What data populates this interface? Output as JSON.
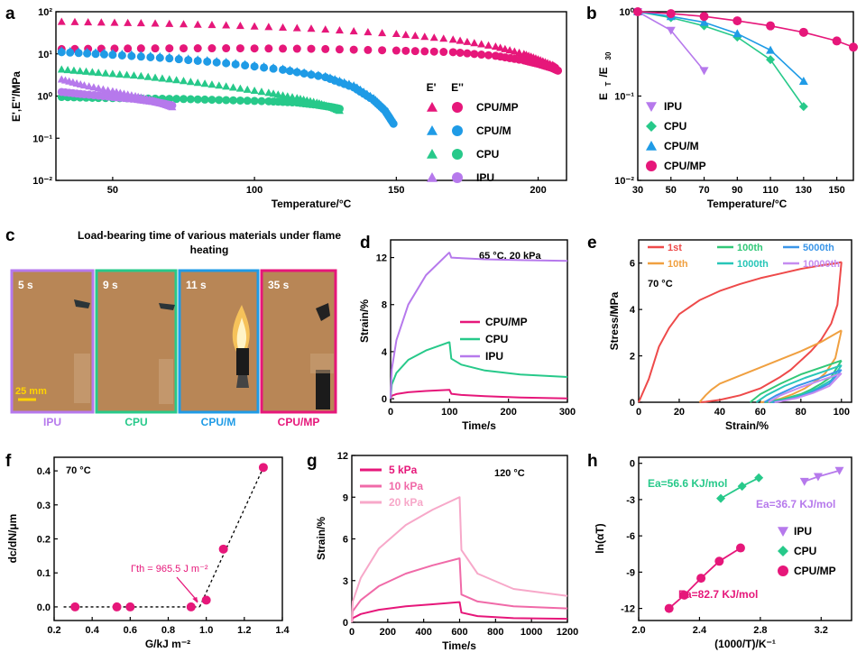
{
  "colors": {
    "cpump": "#e6177a",
    "cpum": "#1f9be6",
    "cpu": "#27c98a",
    "ipu": "#b679ec",
    "dark": "#000000",
    "cpump_light1": "#f06aa8",
    "cpump_light2": "#f7a8c9",
    "cycle1": "#ee4a4a",
    "cycle10": "#f0a040",
    "cycle100": "#32c878",
    "cycle1000": "#28c6b8",
    "cycle5000": "#3b96e8",
    "cycle10000": "#c58cf0"
  },
  "panels": {
    "a": {
      "letter": "a"
    },
    "b": {
      "letter": "b"
    },
    "c": {
      "letter": "c",
      "title_line1": "Load-bearing time of various materials under flame",
      "title_line2": "heating",
      "scale_bar": "25 mm",
      "photos": [
        {
          "time": "5 s",
          "label": "IPU"
        },
        {
          "time": "9 s",
          "label": "CPU"
        },
        {
          "time": "11 s",
          "label": "CPU/M"
        },
        {
          "time": "35 s",
          "label": "CPU/MP"
        }
      ]
    },
    "d": {
      "letter": "d"
    },
    "e": {
      "letter": "e"
    },
    "f": {
      "letter": "f"
    },
    "g": {
      "letter": "g"
    },
    "h": {
      "letter": "h"
    }
  },
  "chart_data": [
    {
      "panel": "a",
      "type": "scatter",
      "log_y": true,
      "xlabel": "Temperature/°C",
      "ylabel": "E',E''/MPa",
      "xlim": [
        30,
        210
      ],
      "ylim": [
        0.01,
        100
      ],
      "xticks": [
        "50",
        "100",
        "150",
        "200"
      ],
      "yticks": [
        "10⁻²",
        "10⁻¹",
        "10⁰",
        "10¹",
        "10²"
      ],
      "legend_header": [
        "E'",
        "E''"
      ],
      "legend": [
        "CPU/MP",
        "CPU/M",
        "CPU",
        "IPU"
      ],
      "series": [
        {
          "name": "CPU/MP",
          "modulus": "E'",
          "x": [
            32,
            60,
            90,
            120,
            150,
            170,
            185,
            195,
            200,
            205,
            207
          ],
          "y": [
            58,
            54,
            48,
            40,
            30,
            22,
            15,
            10,
            7.5,
            5.5,
            4.5
          ]
        },
        {
          "name": "CPU/MP",
          "modulus": "E''",
          "x": [
            32,
            60,
            90,
            120,
            150,
            170,
            185,
            195,
            200,
            205,
            207
          ],
          "y": [
            13,
            13.5,
            13.6,
            13.2,
            12,
            11,
            9,
            7,
            5.8,
            4.6,
            4.0
          ]
        },
        {
          "name": "CPU/M",
          "modulus": "E'",
          "x": [
            32,
            50,
            70,
            90,
            110,
            125,
            135,
            142,
            146,
            149
          ],
          "y": [
            12,
            10.5,
            8.5,
            6.5,
            4.5,
            3,
            1.8,
            0.9,
            0.5,
            0.25
          ]
        },
        {
          "name": "CPU/M",
          "modulus": "E''",
          "x": [
            32,
            50,
            70,
            90,
            110,
            125,
            135,
            142,
            146,
            149
          ],
          "y": [
            11,
            9.5,
            7.8,
            6.0,
            4.2,
            2.8,
            1.6,
            0.8,
            0.45,
            0.22
          ]
        },
        {
          "name": "CPU",
          "modulus": "E'",
          "x": [
            32,
            45,
            60,
            75,
            90,
            105,
            115,
            122,
            127,
            130
          ],
          "y": [
            4.3,
            3.6,
            3.0,
            2.3,
            1.7,
            1.2,
            0.9,
            0.7,
            0.55,
            0.45
          ]
        },
        {
          "name": "CPU",
          "modulus": "E''",
          "x": [
            32,
            45,
            60,
            75,
            90,
            105,
            115,
            122,
            127,
            130
          ],
          "y": [
            0.95,
            0.9,
            0.88,
            0.85,
            0.8,
            0.75,
            0.7,
            0.62,
            0.55,
            0.5
          ]
        },
        {
          "name": "IPU",
          "modulus": "E'",
          "x": [
            32,
            40,
            50,
            58,
            64,
            68,
            71
          ],
          "y": [
            2.5,
            1.8,
            1.3,
            1.0,
            0.8,
            0.65,
            0.55
          ]
        },
        {
          "name": "IPU",
          "modulus": "E''",
          "x": [
            32,
            40,
            50,
            58,
            64,
            68,
            71
          ],
          "y": [
            1.25,
            1.1,
            0.95,
            0.85,
            0.75,
            0.66,
            0.6
          ]
        }
      ]
    },
    {
      "panel": "b",
      "type": "line",
      "log_y": true,
      "xlabel": "Temperature/°C",
      "ylabel": "E_T/E_30",
      "xlim": [
        30,
        160
      ],
      "ylim": [
        0.01,
        1
      ],
      "xticks": [
        "30",
        "50",
        "70",
        "90",
        "110",
        "130",
        "150"
      ],
      "yticks": [
        "10⁻²",
        "10⁻¹",
        "10⁰"
      ],
      "legend": [
        "IPU",
        "CPU",
        "CPU/M",
        "CPU/MP"
      ],
      "series": [
        {
          "name": "IPU",
          "marker": "triangle-down",
          "x": [
            30,
            50,
            70
          ],
          "y": [
            1.0,
            0.6,
            0.2
          ]
        },
        {
          "name": "CPU",
          "marker": "diamond",
          "x": [
            30,
            50,
            70,
            90,
            110,
            130
          ],
          "y": [
            1.0,
            0.85,
            0.68,
            0.5,
            0.27,
            0.075
          ]
        },
        {
          "name": "CPU/M",
          "marker": "triangle-up",
          "x": [
            30,
            50,
            70,
            90,
            110,
            130
          ],
          "y": [
            1.0,
            0.88,
            0.75,
            0.55,
            0.35,
            0.15
          ]
        },
        {
          "name": "CPU/MP",
          "marker": "circle",
          "x": [
            30,
            50,
            70,
            90,
            110,
            130,
            150,
            160
          ],
          "y": [
            1.0,
            0.95,
            0.88,
            0.78,
            0.68,
            0.57,
            0.45,
            0.38
          ]
        }
      ]
    },
    {
      "panel": "d",
      "type": "line",
      "xlabel": "Time/s",
      "ylabel": "Strain/%",
      "annotation": "65 °C, 20 kPa",
      "xlim": [
        0,
        300
      ],
      "ylim": [
        -0.3,
        13.5
      ],
      "xticks": [
        "0",
        "100",
        "200",
        "300"
      ],
      "yticks": [
        "0",
        "4",
        "8",
        "12"
      ],
      "legend": [
        "CPU/MP",
        "CPU",
        "IPU"
      ],
      "series": [
        {
          "name": "CPU/MP",
          "x": [
            0,
            2,
            10,
            30,
            60,
            99,
            100,
            103,
            120,
            160,
            220,
            300
          ],
          "y": [
            0,
            0.25,
            0.4,
            0.55,
            0.66,
            0.75,
            0.75,
            0.42,
            0.32,
            0.22,
            0.1,
            0.02
          ]
        },
        {
          "name": "CPU",
          "x": [
            0,
            2,
            10,
            30,
            60,
            99,
            100,
            103,
            120,
            160,
            220,
            300
          ],
          "y": [
            0,
            1.2,
            2.2,
            3.3,
            4.1,
            4.8,
            4.8,
            3.4,
            2.9,
            2.4,
            2.05,
            1.85
          ]
        },
        {
          "name": "IPU",
          "x": [
            0,
            2,
            10,
            30,
            60,
            99,
            100,
            103,
            120,
            160,
            220,
            300
          ],
          "y": [
            0,
            2.5,
            5.0,
            8.0,
            10.5,
            12.4,
            12.4,
            12.0,
            11.95,
            11.85,
            11.78,
            11.72
          ]
        }
      ]
    },
    {
      "panel": "e",
      "type": "line",
      "xlabel": "Strain/%",
      "ylabel": "Stress/MPa",
      "annotation": "70 °C",
      "xlim": [
        0,
        105
      ],
      "ylim": [
        0,
        7
      ],
      "xticks": [
        "0",
        "20",
        "40",
        "60",
        "80",
        "100"
      ],
      "yticks": [
        "0",
        "2",
        "4",
        "6"
      ],
      "legend": [
        "1st",
        "10th",
        "100th",
        "1000th",
        "5000th",
        "10000th"
      ],
      "series": [
        {
          "name": "1st",
          "loading": {
            "x": [
              0,
              5,
              10,
              15,
              20,
              30,
              40,
              50,
              60,
              70,
              80,
              90,
              98,
              100
            ],
            "y": [
              0,
              1.0,
              2.4,
              3.2,
              3.8,
              4.4,
              4.8,
              5.1,
              5.35,
              5.55,
              5.75,
              5.9,
              6.0,
              6.05
            ]
          },
          "unloading": {
            "x": [
              100,
              98,
              95,
              90,
              85,
              80,
              75,
              70,
              60,
              50,
              40,
              33,
              30
            ],
            "y": [
              6.05,
              4.2,
              3.4,
              2.7,
              2.2,
              1.8,
              1.4,
              1.1,
              0.6,
              0.3,
              0.1,
              0.02,
              0
            ]
          }
        },
        {
          "name": "10th",
          "loading": {
            "x": [
              30,
              33,
              36,
              40,
              50,
              60,
              70,
              80,
              90,
              97,
              100
            ],
            "y": [
              0,
              0.3,
              0.55,
              0.8,
              1.15,
              1.5,
              1.85,
              2.2,
              2.6,
              2.95,
              3.1
            ]
          },
          "unloading": {
            "x": [
              100,
              97,
              92,
              88,
              82,
              76,
              70,
              65,
              60
            ],
            "y": [
              3.1,
              1.9,
              1.25,
              0.95,
              0.6,
              0.35,
              0.15,
              0.05,
              0
            ]
          }
        },
        {
          "name": "100th",
          "loading": {
            "x": [
              55,
              60,
              70,
              80,
              90,
              100
            ],
            "y": [
              0,
              0.35,
              0.8,
              1.2,
              1.5,
              1.8
            ]
          },
          "unloading": {
            "x": [
              100,
              95,
              90,
              85,
              80,
              72,
              65,
              62
            ],
            "y": [
              1.8,
              1.1,
              0.8,
              0.55,
              0.35,
              0.15,
              0.03,
              0
            ]
          }
        },
        {
          "name": "1000th",
          "loading": {
            "x": [
              58,
              63,
              72,
              82,
              92,
              100
            ],
            "y": [
              0,
              0.3,
              0.7,
              1.05,
              1.35,
              1.6
            ]
          },
          "unloading": {
            "x": [
              100,
              95,
              88,
              80,
              72,
              65
            ],
            "y": [
              1.6,
              0.95,
              0.6,
              0.3,
              0.1,
              0
            ]
          }
        },
        {
          "name": "5000th",
          "loading": {
            "x": [
              62,
              68,
              78,
              88,
              100
            ],
            "y": [
              0,
              0.3,
              0.7,
              1.0,
              1.4
            ]
          },
          "unloading": {
            "x": [
              100,
              94,
              86,
              78,
              70,
              66
            ],
            "y": [
              1.4,
              0.8,
              0.45,
              0.2,
              0.05,
              0
            ]
          }
        },
        {
          "name": "10000th",
          "loading": {
            "x": [
              64,
              70,
              80,
              90,
              100
            ],
            "y": [
              0,
              0.3,
              0.65,
              0.95,
              1.25
            ]
          },
          "unloading": {
            "x": [
              100,
              94,
              86,
              78,
              70,
              67
            ],
            "y": [
              1.25,
              0.7,
              0.4,
              0.18,
              0.04,
              0
            ]
          }
        }
      ]
    },
    {
      "panel": "f",
      "type": "scatter",
      "xlabel": "G/kJ m⁻²",
      "ylabel": "dc/dN/μm",
      "annotation": "70 °C",
      "threshold_label": "Γth = 965.5 J m⁻²",
      "xlim": [
        0.2,
        1.4
      ],
      "ylim": [
        -0.04,
        0.44
      ],
      "xticks": [
        "0.2",
        "0.4",
        "0.6",
        "0.8",
        "1.0",
        "1.2",
        "1.4"
      ],
      "yticks": [
        "0.0",
        "0.1",
        "0.2",
        "0.3",
        "0.4"
      ],
      "series": [
        {
          "name": "CPU/MP",
          "x": [
            0.31,
            0.53,
            0.6,
            0.92,
            1.0,
            1.09,
            1.3
          ],
          "y": [
            0,
            0,
            0,
            0,
            0.02,
            0.17,
            0.41
          ]
        }
      ],
      "fit_flat": {
        "x": [
          0.25,
          0.965
        ],
        "y": [
          0,
          0
        ]
      },
      "fit_slope": {
        "x": [
          0.965,
          1.3
        ],
        "y": [
          0,
          0.41
        ]
      }
    },
    {
      "panel": "g",
      "type": "line",
      "xlabel": "Time/s",
      "ylabel": "Strain/%",
      "annotation": "120 °C",
      "xlim": [
        0,
        1200
      ],
      "ylim": [
        0,
        12
      ],
      "xticks": [
        "0",
        "200",
        "400",
        "600",
        "800",
        "1000",
        "1200"
      ],
      "yticks": [
        "0",
        "3",
        "6",
        "9",
        "12"
      ],
      "legend": [
        "5 kPa",
        "10 kPa",
        "20 kPa"
      ],
      "series": [
        {
          "name": "5 kPa",
          "x": [
            0,
            5,
            50,
            150,
            300,
            450,
            599,
            600,
            610,
            700,
            900,
            1200
          ],
          "y": [
            0,
            0.3,
            0.6,
            0.9,
            1.15,
            1.3,
            1.45,
            1.45,
            0.7,
            0.45,
            0.3,
            0.25
          ]
        },
        {
          "name": "10 kPa",
          "x": [
            0,
            5,
            50,
            150,
            300,
            450,
            599,
            600,
            610,
            700,
            900,
            1200
          ],
          "y": [
            0,
            0.8,
            1.6,
            2.6,
            3.5,
            4.1,
            4.6,
            4.6,
            2.0,
            1.5,
            1.15,
            1.0
          ]
        },
        {
          "name": "20 kPa",
          "x": [
            0,
            5,
            50,
            150,
            300,
            450,
            599,
            600,
            610,
            700,
            900,
            1200
          ],
          "y": [
            0,
            1.5,
            3.2,
            5.3,
            7.0,
            8.1,
            9.0,
            9.0,
            5.2,
            3.5,
            2.4,
            1.9
          ]
        }
      ]
    },
    {
      "panel": "h",
      "type": "scatter",
      "xlabel": "(1000/T)/K⁻¹",
      "ylabel": "ln(αT)",
      "xlim": [
        2.0,
        3.4
      ],
      "ylim": [
        -13,
        0.5
      ],
      "xticks": [
        "2.0",
        "2.4",
        "2.8",
        "3.2"
      ],
      "yticks": [
        "-12",
        "-9",
        "-6",
        "-3",
        "0"
      ],
      "legend": [
        "IPU",
        "CPU",
        "CPU/MP"
      ],
      "annotations": [
        {
          "text": "Ea=56.6 KJ/mol",
          "series": "CPU"
        },
        {
          "text": "Ea=36.7 KJ/mol",
          "series": "IPU"
        },
        {
          "text": "Ea=82.7 KJ/mol",
          "series": "CPU/MP"
        }
      ],
      "series": [
        {
          "name": "IPU",
          "marker": "triangle-down",
          "x": [
            3.09,
            3.18,
            3.32
          ],
          "y": [
            -1.5,
            -1.1,
            -0.6
          ]
        },
        {
          "name": "CPU",
          "marker": "diamond",
          "x": [
            2.54,
            2.68,
            2.79
          ],
          "y": [
            -2.9,
            -1.9,
            -1.2
          ]
        },
        {
          "name": "CPU/MP",
          "marker": "circle",
          "x": [
            2.2,
            2.3,
            2.41,
            2.53,
            2.67
          ],
          "y": [
            -12.0,
            -10.9,
            -9.5,
            -8.1,
            -7.0
          ]
        }
      ]
    }
  ]
}
